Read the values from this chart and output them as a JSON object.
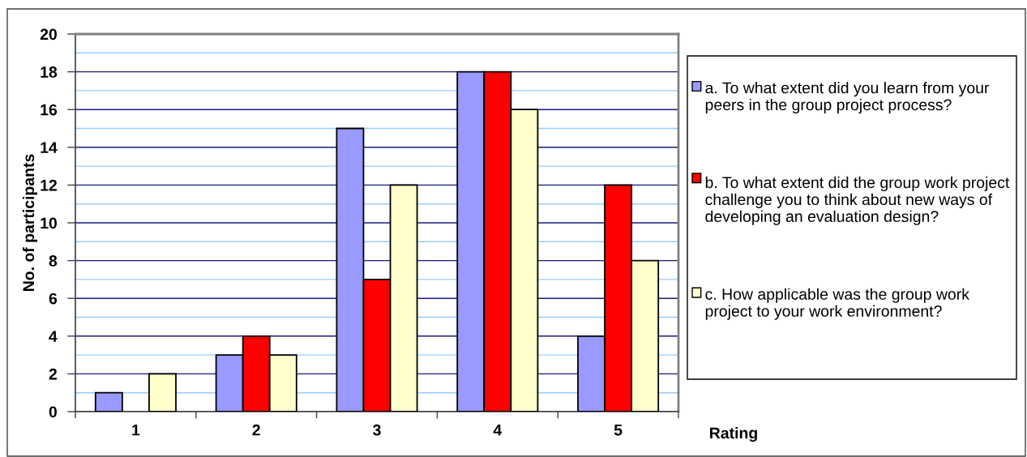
{
  "chart_data": {
    "type": "bar",
    "xlabel": "Rating",
    "ylabel": "No. of participants",
    "categories": [
      "1",
      "2",
      "3",
      "4",
      "5"
    ],
    "series": [
      {
        "name": "a. To what extent did you learn from your peers in the group project process?",
        "color": "#9999ff",
        "values": [
          1,
          3,
          15,
          18,
          4
        ]
      },
      {
        "name": "b. To what extent did the group work project challenge you to think about new ways of developing an evaluation design?",
        "color": "#ff0000",
        "values": [
          null,
          4,
          7,
          18,
          12
        ]
      },
      {
        "name": "c. How applicable was the group work project to your work environment?",
        "color": "#ffffcc",
        "values": [
          2,
          3,
          12,
          16,
          8
        ]
      }
    ],
    "ylim": [
      0,
      20
    ],
    "yticks": [
      0,
      {
        "value": 1,
        "label": null
      },
      2,
      {
        "value": 3,
        "label": null
      },
      4,
      {
        "value": 5,
        "label": null
      },
      6,
      {
        "value": 7,
        "label": null
      },
      8,
      {
        "value": 9,
        "label": null
      },
      10,
      {
        "value": 11,
        "label": null
      },
      12,
      {
        "value": 13,
        "label": null
      },
      14,
      {
        "value": 15,
        "label": null
      },
      16,
      {
        "value": 17,
        "label": null
      },
      18,
      {
        "value": 19,
        "label": null
      },
      20
    ],
    "grid": "y",
    "legend": "right"
  }
}
